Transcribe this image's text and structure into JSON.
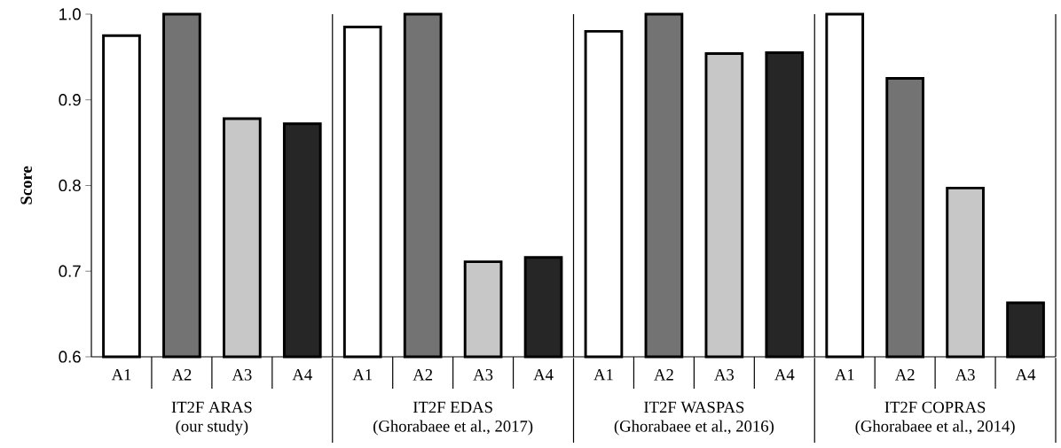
{
  "chart_data": {
    "type": "bar",
    "ylabel": "Score",
    "categories": [
      "A1",
      "A2",
      "A3",
      "A4",
      "A1",
      "A2",
      "A3",
      "A4",
      "A1",
      "A2",
      "A3",
      "A4",
      "A1",
      "A2",
      "A3",
      "A4"
    ],
    "values": [
      0.975,
      1.0,
      0.878,
      0.872,
      0.985,
      1.0,
      0.711,
      0.716,
      0.98,
      1.0,
      0.954,
      0.955,
      1.0,
      0.925,
      0.797,
      0.663
    ],
    "color": "#000000",
    "ylim": [
      0.6,
      1.0
    ],
    "yticks": [
      0.6,
      0.7,
      0.8,
      0.9,
      {
        "value": 1,
        "label": "1.0"
      }
    ],
    "annotations": [
      "IT2F ARAS",
      "(our study)",
      "IT2F EDAS",
      "(Ghorabaee et al., 2017)",
      "IT2F WASPAS",
      "(Ghorabaee et al., 2016)",
      "IT2F COPRAS",
      "(Ghorabaee et al., 2014)"
    ],
    "grid": false
  }
}
